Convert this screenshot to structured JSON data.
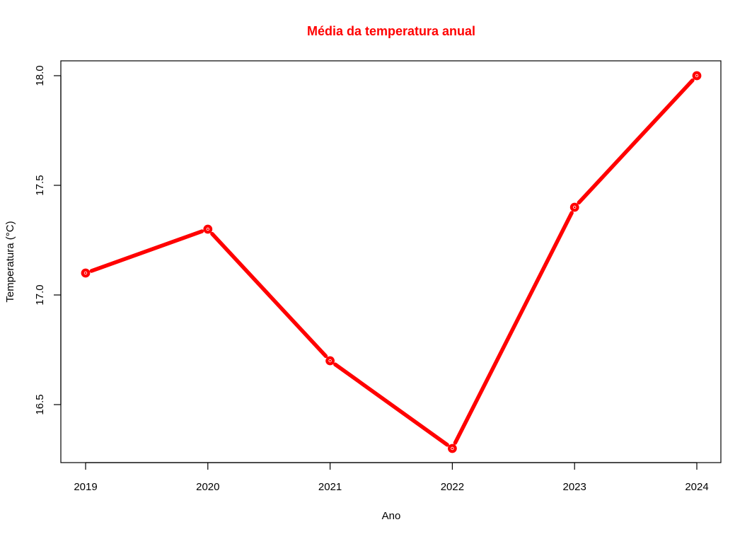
{
  "chart_data": {
    "type": "line",
    "title": "Média da temperatura anual",
    "xlabel": "Ano",
    "ylabel": "Temperatura (°C)",
    "x": [
      "2019",
      "2020",
      "2021",
      "2022",
      "2023",
      "2024"
    ],
    "series": [
      {
        "values": [
          17.1,
          17.3,
          16.7,
          16.3,
          17.4,
          18.0
        ]
      }
    ],
    "ylim": [
      16.23,
      18.07
    ],
    "yticks": [
      "16.5",
      "17.0",
      "17.5",
      "18.0"
    ],
    "grid": false,
    "legend": "none",
    "marker": "filled circle with white center",
    "color": "#ff0000"
  }
}
